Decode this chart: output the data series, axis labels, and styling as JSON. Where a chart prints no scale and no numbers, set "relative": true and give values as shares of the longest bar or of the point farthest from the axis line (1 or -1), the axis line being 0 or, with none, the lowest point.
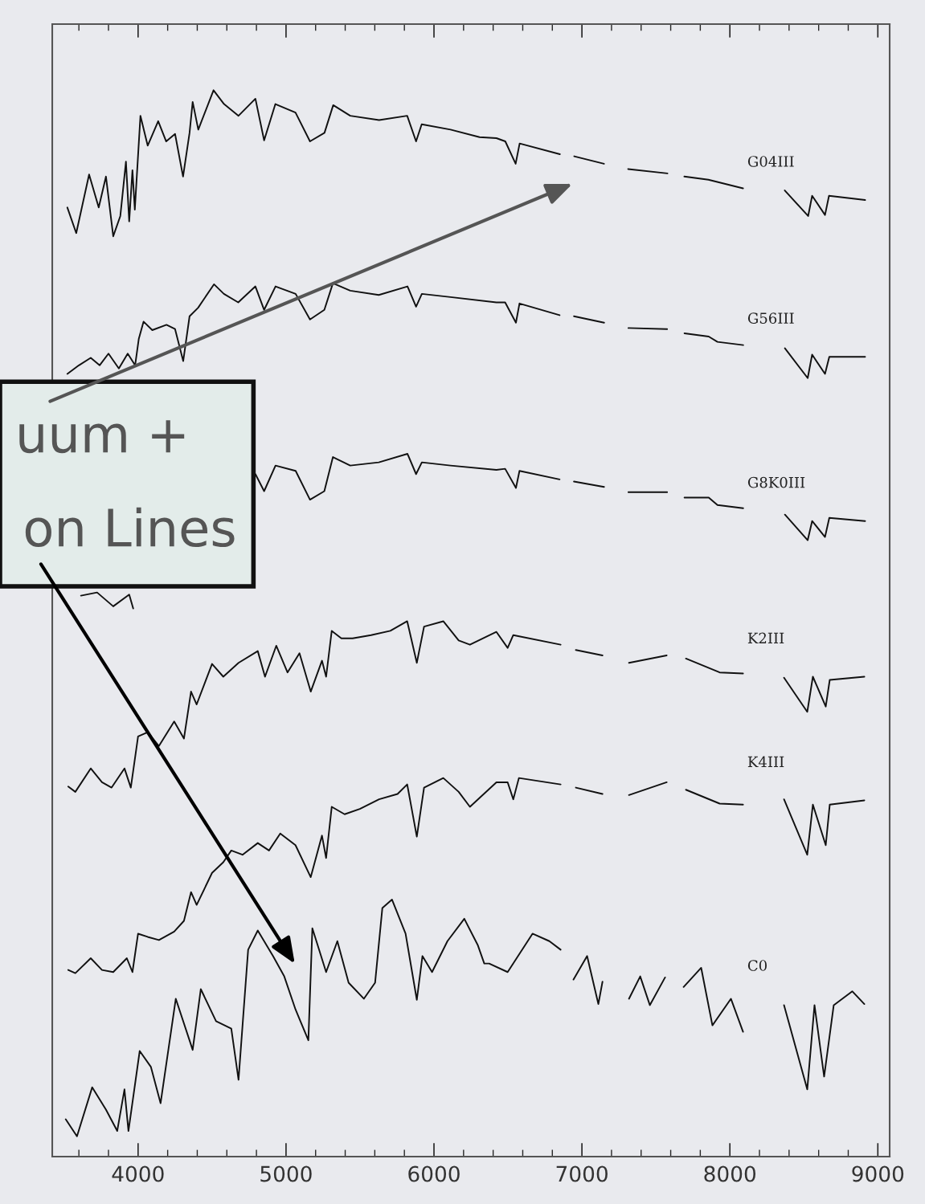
{
  "chart_data": {
    "type": "line",
    "relative": true,
    "tick_labels": "x",
    "xlim": [
      3420,
      9080
    ],
    "xticks": [
      {
        "value": 3600,
        "label": null
      },
      {
        "value": 3800,
        "label": null
      },
      4000,
      {
        "value": 4200,
        "label": null
      },
      {
        "value": 4400,
        "label": null
      },
      {
        "value": 4600,
        "label": null
      },
      {
        "value": 4800,
        "label": null
      },
      5000,
      {
        "value": 5200,
        "label": null
      },
      {
        "value": 5400,
        "label": null
      },
      {
        "value": 5600,
        "label": null
      },
      {
        "value": 5800,
        "label": null
      },
      6000,
      {
        "value": 6200,
        "label": null
      },
      {
        "value": 6400,
        "label": null
      },
      {
        "value": 6600,
        "label": null
      },
      {
        "value": 6800,
        "label": null
      },
      7000,
      {
        "value": 7200,
        "label": null
      },
      {
        "value": 7400,
        "label": null
      },
      {
        "value": 7600,
        "label": null
      },
      {
        "value": 7800,
        "label": null
      },
      8000,
      {
        "value": 8200,
        "label": null
      },
      {
        "value": 8400,
        "label": null
      },
      {
        "value": 8600,
        "label": null
      },
      {
        "value": 8800,
        "label": null
      },
      9000
    ],
    "annotations": [
      "uum +",
      "on Lines"
    ],
    "series": [
      {
        "name": "G04III",
        "color": "#111111",
        "x": [
          3522,
          3582,
          3669,
          3734,
          3783,
          3832,
          3880,
          3918,
          3940,
          3962,
          3978,
          4016,
          4065,
          4136,
          4190,
          4250,
          4304,
          4348,
          4369,
          4407,
          4510,
          4581,
          4679,
          4793,
          4852,
          4928,
          5064,
          5162,
          5260,
          5319,
          5434,
          5629,
          5819,
          5879,
          5917,
          6112,
          6308,
          6422,
          6482,
          6552,
          6579,
          6851,
          6900,
          6948,
          7149,
          7230,
          7312,
          7578,
          7640,
          7692,
          7855,
          8089,
          8230,
          8371,
          8529,
          8556,
          8643,
          8670,
          8914
        ],
        "values": [
          0.89,
          0.866,
          0.921,
          0.89,
          0.919,
          0.863,
          0.882,
          0.933,
          0.877,
          0.925,
          0.888,
          0.976,
          0.948,
          0.971,
          0.952,
          0.959,
          0.919,
          0.96,
          0.989,
          0.963,
          1,
          0.987,
          0.976,
          0.992,
          0.953,
          0.987,
          0.979,
          0.952,
          0.96,
          0.986,
          0.976,
          0.972,
          0.976,
          0.952,
          0.968,
          0.963,
          0.956,
          0.955,
          0.952,
          0.931,
          0.95,
          0.94,
          null,
          0.938,
          0.931,
          null,
          0.926,
          0.922,
          null,
          0.919,
          0.916,
          0.908,
          null,
          0.906,
          0.882,
          0.901,
          0.883,
          0.901,
          0.897
        ]
      },
      {
        "name": "G56III",
        "color": "#111111",
        "x": [
          3522,
          3600,
          3680,
          3740,
          3800,
          3870,
          3930,
          3980,
          4005,
          4037,
          4096,
          4192,
          4250,
          4305,
          4348,
          4406,
          4513,
          4580,
          4677,
          4793,
          4852,
          4929,
          5065,
          5162,
          5259,
          5317,
          5434,
          5627,
          5821,
          5879,
          5918,
          6112,
          6422,
          6481,
          6554,
          6578,
          6849,
          6900,
          6946,
          7150,
          7230,
          7314,
          7576,
          7640,
          7693,
          7857,
          7916,
          8090,
          8230,
          8372,
          8526,
          8556,
          8643,
          8672,
          8914
        ],
        "values": [
          0.734,
          0.742,
          0.749,
          0.742,
          0.753,
          0.739,
          0.753,
          0.742,
          0.767,
          0.783,
          0.775,
          0.78,
          0.776,
          0.746,
          0.788,
          0.796,
          0.818,
          0.809,
          0.801,
          0.816,
          0.794,
          0.816,
          0.809,
          0.785,
          0.794,
          0.819,
          0.812,
          0.808,
          0.816,
          0.797,
          0.809,
          0.806,
          0.801,
          0.801,
          0.782,
          0.8,
          0.789,
          null,
          0.788,
          0.782,
          null,
          0.777,
          0.776,
          null,
          0.772,
          0.769,
          0.764,
          0.761,
          null,
          0.758,
          0.73,
          0.752,
          0.734,
          0.75,
          0.75
        ]
      },
      {
        "name": "G8K0III",
        "color": "#111111",
        "x": [
          3614,
          3723,
          3832,
          3940,
          3967,
          4400,
          4793,
          4852,
          4929,
          5065,
          5162,
          5259,
          5317,
          5434,
          5627,
          5821,
          5879,
          5918,
          6112,
          6422,
          6481,
          6554,
          6578,
          6849,
          6900,
          6946,
          7150,
          7230,
          7314,
          7576,
          7640,
          7693,
          7857,
          7916,
          8090,
          8230,
          8372,
          8526,
          8556,
          8643,
          8672,
          8914
        ],
        "values": [
          0.526,
          0.529,
          0.516,
          0.527,
          0.514,
          null,
          0.64,
          0.624,
          0.648,
          0.643,
          0.616,
          0.624,
          0.656,
          0.648,
          0.651,
          0.659,
          0.64,
          0.651,
          0.648,
          0.644,
          0.645,
          0.627,
          0.643,
          0.635,
          null,
          0.633,
          0.628,
          null,
          0.623,
          0.623,
          null,
          0.618,
          0.618,
          0.611,
          0.608,
          null,
          0.602,
          0.578,
          0.596,
          0.581,
          0.599,
          0.596
        ]
      },
      {
        "name": "K2III",
        "color": "#111111",
        "x": [
          3528,
          3576,
          3680,
          3756,
          3821,
          3908,
          3951,
          4000,
          4065,
          4141,
          4244,
          4310,
          4358,
          4396,
          4500,
          4576,
          4679,
          4809,
          4858,
          4934,
          5010,
          5091,
          5167,
          5243,
          5271,
          5309,
          5374,
          5450,
          5575,
          5705,
          5819,
          5884,
          5933,
          6063,
          6167,
          6243,
          6422,
          6498,
          6536,
          6856,
          6900,
          6959,
          7139,
          7230,
          7318,
          7573,
          7640,
          7703,
          7931,
          8089,
          8230,
          8366,
          8523,
          8561,
          8648,
          8675,
          8909
        ],
        "values": [
          0.347,
          0.342,
          0.364,
          0.351,
          0.346,
          0.364,
          0.346,
          0.394,
          0.398,
          0.385,
          0.408,
          0.392,
          0.436,
          0.424,
          0.462,
          0.45,
          0.463,
          0.474,
          0.45,
          0.479,
          0.454,
          0.472,
          0.436,
          0.465,
          0.45,
          0.493,
          0.486,
          0.486,
          0.489,
          0.493,
          0.502,
          0.463,
          0.497,
          0.502,
          0.484,
          0.48,
          0.492,
          0.477,
          0.489,
          0.48,
          null,
          0.475,
          0.47,
          null,
          0.463,
          0.47,
          null,
          0.467,
          0.454,
          0.453,
          null,
          0.449,
          0.417,
          0.45,
          0.422,
          0.447,
          0.45
        ]
      },
      {
        "name": "K4III",
        "color": "#111111",
        "x": [
          3528,
          3576,
          3680,
          3756,
          3832,
          3924,
          3962,
          4000,
          4065,
          4141,
          4244,
          4310,
          4358,
          4396,
          4500,
          4576,
          4630,
          4706,
          4809,
          4885,
          4961,
          5064,
          5167,
          5243,
          5271,
          5309,
          5396,
          5499,
          5629,
          5754,
          5819,
          5884,
          5933,
          6063,
          6167,
          6243,
          6422,
          6498,
          6536,
          6574,
          6856,
          6900,
          6959,
          7139,
          7230,
          7318,
          7573,
          7640,
          7703,
          7931,
          8089,
          8230,
          8366,
          8523,
          8561,
          8648,
          8675,
          8909
        ],
        "values": [
          0.175,
          0.172,
          0.186,
          0.175,
          0.173,
          0.186,
          0.173,
          0.209,
          0.206,
          0.203,
          0.211,
          0.221,
          0.248,
          0.236,
          0.266,
          0.276,
          0.287,
          0.283,
          0.294,
          0.287,
          0.303,
          0.292,
          0.262,
          0.301,
          0.28,
          0.328,
          0.321,
          0.326,
          0.335,
          0.34,
          0.349,
          0.3,
          0.346,
          0.355,
          0.342,
          0.328,
          0.351,
          0.351,
          0.335,
          0.355,
          0.349,
          null,
          0.346,
          0.34,
          null,
          0.339,
          0.351,
          null,
          0.344,
          0.331,
          0.33,
          null,
          0.335,
          0.283,
          0.33,
          0.292,
          0.33,
          0.334
        ]
      },
      {
        "name": "C0",
        "color": "#111111",
        "x": [
          3511,
          3587,
          3690,
          3783,
          3859,
          3908,
          3935,
          4011,
          4087,
          4152,
          4255,
          4369,
          4424,
          4527,
          4630,
          4679,
          4744,
          4809,
          4912,
          4988,
          5064,
          5151,
          5178,
          5271,
          5347,
          5423,
          5526,
          5602,
          5651,
          5716,
          5808,
          5884,
          5922,
          5987,
          6091,
          6205,
          6297,
          6340,
          6373,
          6498,
          6666,
          6780,
          6856,
          6900,
          6943,
          7035,
          7111,
          7139,
          7230,
          7318,
          7394,
          7459,
          7562,
          7640,
          7687,
          7806,
          7882,
          8007,
          8089,
          8230,
          8366,
          8523,
          8572,
          8637,
          8702,
          8827,
          8909
        ],
        "values": [
          0.035,
          0.019,
          0.065,
          0.044,
          0.024,
          0.063,
          0.024,
          0.099,
          0.084,
          0.05,
          0.148,
          0.1,
          0.157,
          0.127,
          0.12,
          0.072,
          0.194,
          0.212,
          0.188,
          0.169,
          0.138,
          0.109,
          0.214,
          0.173,
          0.202,
          0.163,
          0.148,
          0.163,
          0.233,
          0.241,
          0.209,
          0.147,
          0.188,
          0.173,
          0.202,
          0.223,
          0.198,
          0.181,
          0.181,
          0.173,
          0.209,
          0.202,
          0.194,
          null,
          0.166,
          0.188,
          0.143,
          0.164,
          null,
          0.148,
          0.169,
          0.142,
          0.168,
          null,
          0.159,
          0.177,
          0.123,
          0.148,
          0.117,
          null,
          0.142,
          0.063,
          0.142,
          0.075,
          0.142,
          0.155,
          0.143
        ]
      }
    ]
  }
}
